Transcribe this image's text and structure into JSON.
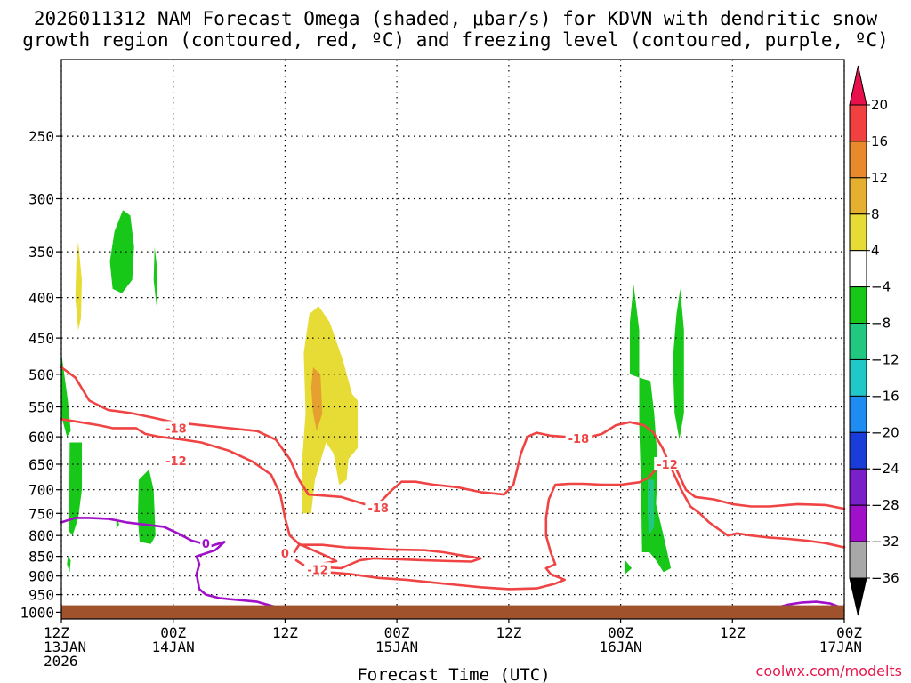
{
  "chart_data": {
    "type": "time-height cross section",
    "title_line1": "2026011312 NAM Forecast Omega (shaded, μbar/s) for KDVN with dendritic snow",
    "title_line2": "growth region (contoured, red, ºC) and freezing level (contoured, purple, ºC)",
    "xlabel": "Forecast Time (UTC)",
    "credit": "coolwx.com/modelts",
    "x_range_hours": [
      0,
      84
    ],
    "x_ticks": [
      {
        "hour": 0,
        "l1": "12Z",
        "l2": "13JAN",
        "l3": "2026"
      },
      {
        "hour": 12,
        "l1": "00Z",
        "l2": "14JAN",
        "l3": ""
      },
      {
        "hour": 24,
        "l1": "12Z",
        "l2": "",
        "l3": ""
      },
      {
        "hour": 36,
        "l1": "00Z",
        "l2": "15JAN",
        "l3": ""
      },
      {
        "hour": 48,
        "l1": "12Z",
        "l2": "",
        "l3": ""
      },
      {
        "hour": 60,
        "l1": "00Z",
        "l2": "16JAN",
        "l3": ""
      },
      {
        "hour": 72,
        "l1": "12Z",
        "l2": "",
        "l3": ""
      },
      {
        "hour": 84,
        "l1": "00Z",
        "l2": "17JAN",
        "l3": ""
      }
    ],
    "y_ticks_hpa": [
      250,
      300,
      350,
      400,
      450,
      500,
      550,
      600,
      650,
      700,
      750,
      800,
      850,
      900,
      950,
      1000
    ],
    "y_range_hpa": [
      200,
      1020
    ],
    "surface_hpa": 980,
    "colorbar": {
      "levels": [
        "20",
        "16",
        "12",
        "8",
        "4",
        "−4",
        "−8",
        "−12",
        "−16",
        "−20",
        "−24",
        "−28",
        "−32",
        "−36"
      ],
      "colors": [
        "#e8104c",
        "#f04040",
        "#e88a2c",
        "#e5b030",
        "#e6dc35",
        "#ffffff",
        "#18c818",
        "#20c880",
        "#20c8c8",
        "#1e8cf0",
        "#1a3cd8",
        "#7a20c8",
        "#a010c8",
        "#a8a8a8",
        "#000000"
      ]
    },
    "colors": {
      "green": "#18c818",
      "teal": "#20c880",
      "yellow": "#e6dc35",
      "orange": "#e5a030",
      "dsgz": "#f04444",
      "freezing": "#a010c8",
      "ground": "#a0522d"
    },
    "shaded_regions": [
      {
        "color": "green",
        "points": [
          [
            5.5,
            390
          ],
          [
            5.2,
            360
          ],
          [
            5.7,
            330
          ],
          [
            6.6,
            310
          ],
          [
            7.4,
            315
          ],
          [
            7.8,
            345
          ],
          [
            7.6,
            380
          ],
          [
            6.5,
            395
          ]
        ]
      },
      {
        "color": "green",
        "points": [
          [
            10.0,
            345
          ],
          [
            10.3,
            370
          ],
          [
            10.2,
            410
          ],
          [
            9.9,
            380
          ]
        ]
      },
      {
        "color": "yellow",
        "points": [
          [
            1.8,
            340
          ],
          [
            2.2,
            380
          ],
          [
            2.1,
            425
          ],
          [
            1.8,
            440
          ],
          [
            1.5,
            400
          ],
          [
            1.6,
            360
          ]
        ]
      },
      {
        "color": "green",
        "points": [
          [
            0.0,
            470
          ],
          [
            0.7,
            540
          ],
          [
            1.0,
            590
          ],
          [
            0.6,
            600
          ],
          [
            0.0,
            565
          ]
        ]
      },
      {
        "color": "green",
        "points": [
          [
            0.9,
            610
          ],
          [
            2.2,
            610
          ],
          [
            2.2,
            700
          ],
          [
            1.8,
            760
          ],
          [
            1.2,
            800
          ],
          [
            0.8,
            790
          ]
        ]
      },
      {
        "color": "green",
        "points": [
          [
            0.7,
            850
          ],
          [
            1.0,
            860
          ],
          [
            0.9,
            890
          ],
          [
            0.6,
            870
          ]
        ]
      },
      {
        "color": "green",
        "points": [
          [
            5.9,
            755
          ],
          [
            6.2,
            775
          ],
          [
            5.9,
            785
          ]
        ]
      },
      {
        "color": "green",
        "points": [
          [
            8.3,
            680
          ],
          [
            9.4,
            660
          ],
          [
            9.9,
            700
          ],
          [
            10.1,
            800
          ],
          [
            9.6,
            820
          ],
          [
            8.4,
            815
          ],
          [
            8.2,
            760
          ]
        ]
      },
      {
        "color": "yellow",
        "points": [
          [
            26.0,
            470
          ],
          [
            26.6,
            420
          ],
          [
            27.6,
            410
          ],
          [
            28.8,
            430
          ],
          [
            30.2,
            480
          ],
          [
            31.2,
            530
          ],
          [
            31.8,
            540
          ],
          [
            31.8,
            620
          ],
          [
            30.8,
            640
          ],
          [
            30.6,
            680
          ],
          [
            29.8,
            690
          ],
          [
            29.2,
            630
          ],
          [
            28.4,
            610
          ],
          [
            27.2,
            680
          ],
          [
            26.8,
            750
          ],
          [
            25.8,
            750
          ],
          [
            25.8,
            650
          ],
          [
            26.2,
            560
          ]
        ]
      },
      {
        "color": "orange",
        "points": [
          [
            27.0,
            490
          ],
          [
            27.8,
            500
          ],
          [
            28.0,
            560
          ],
          [
            27.4,
            590
          ],
          [
            27.0,
            560
          ],
          [
            26.8,
            520
          ]
        ]
      },
      {
        "color": "green",
        "points": [
          [
            61.0,
            500
          ],
          [
            61.0,
            430
          ],
          [
            61.4,
            385
          ],
          [
            62.0,
            440
          ],
          [
            62.0,
            505
          ]
        ]
      },
      {
        "color": "green",
        "points": [
          [
            62.0,
            505
          ],
          [
            63.2,
            510
          ],
          [
            63.6,
            560
          ],
          [
            64.0,
            650
          ],
          [
            63.8,
            730
          ],
          [
            64.6,
            800
          ],
          [
            65.4,
            880
          ],
          [
            64.6,
            890
          ],
          [
            63.8,
            860
          ],
          [
            63.1,
            840
          ],
          [
            62.3,
            840
          ],
          [
            62.2,
            700
          ],
          [
            62.0,
            580
          ]
        ]
      },
      {
        "color": "teal",
        "points": [
          [
            62.9,
            680
          ],
          [
            63.6,
            680
          ],
          [
            63.6,
            780
          ],
          [
            63.0,
            800
          ],
          [
            62.9,
            740
          ]
        ]
      },
      {
        "color": "green",
        "points": [
          [
            66.0,
            420
          ],
          [
            66.4,
            390
          ],
          [
            66.8,
            440
          ],
          [
            66.8,
            560
          ],
          [
            66.3,
            605
          ],
          [
            65.8,
            560
          ],
          [
            65.6,
            480
          ]
        ]
      },
      {
        "color": "green",
        "points": [
          [
            60.5,
            860
          ],
          [
            61.2,
            880
          ],
          [
            60.5,
            895
          ]
        ]
      }
    ],
    "contours": [
      {
        "kind": "dsgz",
        "points": [
          [
            0,
            490
          ],
          [
            1.5,
            505
          ],
          [
            3.0,
            540
          ],
          [
            5.0,
            555
          ],
          [
            7.5,
            560
          ],
          [
            10.0,
            568
          ],
          [
            12.0,
            575
          ],
          [
            15.0,
            580
          ],
          [
            18.0,
            585
          ],
          [
            21.0,
            590
          ],
          [
            23.0,
            605
          ],
          [
            24.5,
            640
          ],
          [
            25.5,
            680
          ],
          [
            26.5,
            710
          ],
          [
            28.0,
            712
          ],
          [
            30.0,
            715
          ],
          [
            32.5,
            730
          ],
          [
            34.0,
            730
          ],
          [
            35.5,
            700
          ],
          [
            36.5,
            684
          ],
          [
            38.0,
            684
          ],
          [
            40.0,
            690
          ],
          [
            42.5,
            695
          ],
          [
            45.0,
            705
          ],
          [
            47.5,
            710
          ],
          [
            48.5,
            690
          ],
          [
            49.3,
            630
          ],
          [
            50.0,
            600
          ],
          [
            51.0,
            593
          ],
          [
            52.5,
            598
          ],
          [
            54.0,
            600
          ],
          [
            56.0,
            603
          ],
          [
            58.0,
            595
          ],
          [
            59.5,
            580
          ],
          [
            61.0,
            575
          ],
          [
            62.5,
            580
          ],
          [
            63.5,
            592
          ],
          [
            64.5,
            620
          ],
          [
            65.5,
            660
          ],
          [
            66.5,
            700
          ],
          [
            67.5,
            735
          ],
          [
            68.5,
            750
          ],
          [
            69.5,
            770
          ],
          [
            70.5,
            785
          ],
          [
            71.5,
            800
          ],
          [
            72.5,
            795
          ],
          [
            74.0,
            800
          ],
          [
            76.0,
            805
          ],
          [
            78.0,
            808
          ],
          [
            80.0,
            812
          ],
          [
            82.0,
            818
          ],
          [
            84.0,
            828
          ]
        ]
      },
      {
        "kind": "dsgz",
        "points": [
          [
            0,
            570
          ],
          [
            2.0,
            575
          ],
          [
            4.0,
            580
          ],
          [
            5.5,
            585
          ],
          [
            8.0,
            585
          ],
          [
            9.0,
            595
          ],
          [
            10.5,
            600
          ],
          [
            13.0,
            605
          ],
          [
            15.0,
            610
          ],
          [
            18.0,
            625
          ],
          [
            20.5,
            645
          ],
          [
            22.5,
            670
          ],
          [
            23.5,
            710
          ],
          [
            24.0,
            760
          ],
          [
            24.5,
            800
          ],
          [
            25.5,
            820
          ],
          [
            27.0,
            835
          ],
          [
            28.5,
            850
          ],
          [
            29.5,
            862
          ],
          [
            27.5,
            870
          ],
          [
            26.5,
            875
          ],
          [
            27.0,
            885
          ],
          [
            28.5,
            890
          ],
          [
            31.0,
            895
          ],
          [
            34.0,
            905
          ],
          [
            37.0,
            910
          ],
          [
            41.0,
            920
          ],
          [
            45.0,
            930
          ],
          [
            48.0,
            935
          ],
          [
            51.0,
            933
          ],
          [
            53.0,
            920
          ],
          [
            54.0,
            910
          ],
          [
            52.5,
            895
          ],
          [
            52.0,
            880
          ],
          [
            53.0,
            870
          ],
          [
            52.5,
            840
          ],
          [
            52.0,
            800
          ],
          [
            52.0,
            760
          ],
          [
            52.3,
            720
          ],
          [
            53.0,
            690
          ],
          [
            54.5,
            688
          ],
          [
            56.0,
            688
          ],
          [
            58.0,
            690
          ],
          [
            60.0,
            690
          ],
          [
            62.0,
            685
          ],
          [
            63.0,
            676
          ],
          [
            64.0,
            655
          ],
          [
            65.0,
            648
          ],
          [
            66.0,
            660
          ],
          [
            67.0,
            700
          ],
          [
            68.0,
            715
          ],
          [
            70.0,
            720
          ],
          [
            72.0,
            730
          ],
          [
            74.0,
            735
          ],
          [
            76.0,
            735
          ],
          [
            79.0,
            730
          ],
          [
            82.0,
            732
          ],
          [
            84.0,
            740
          ]
        ]
      },
      {
        "kind": "dsgz",
        "points": [
          [
            25.2,
            860
          ],
          [
            26.0,
            872
          ],
          [
            27.5,
            878
          ],
          [
            28.5,
            878
          ],
          [
            30.0,
            880
          ],
          [
            31.0,
            870
          ],
          [
            32.0,
            860
          ],
          [
            33.5,
            855
          ],
          [
            36.0,
            857
          ],
          [
            39.0,
            860
          ],
          [
            42.0,
            862
          ],
          [
            44.0,
            863
          ],
          [
            45.0,
            855
          ],
          [
            43.0,
            848
          ],
          [
            41.0,
            840
          ],
          [
            39.0,
            835
          ],
          [
            35.0,
            833
          ],
          [
            33.0,
            830
          ],
          [
            30.5,
            828
          ],
          [
            28.0,
            822
          ],
          [
            25.5,
            822
          ],
          [
            25.0,
            840
          ]
        ]
      },
      {
        "kind": "freezing",
        "points": [
          [
            0,
            770
          ],
          [
            1.5,
            760
          ],
          [
            3.0,
            760
          ],
          [
            5.0,
            762
          ],
          [
            7.0,
            770
          ],
          [
            9.0,
            775
          ],
          [
            11.0,
            780
          ],
          [
            12.5,
            795
          ],
          [
            14.0,
            812
          ],
          [
            15.0,
            818
          ],
          [
            16.0,
            825
          ],
          [
            17.5,
            815
          ],
          [
            16.5,
            835
          ],
          [
            14.5,
            850
          ],
          [
            14.8,
            870
          ],
          [
            14.5,
            895
          ],
          [
            14.8,
            935
          ],
          [
            15.5,
            950
          ],
          [
            17.0,
            960
          ],
          [
            19.0,
            965
          ],
          [
            21.0,
            970
          ],
          [
            23.0,
            985
          ]
        ]
      },
      {
        "kind": "freezing",
        "points": [
          [
            77.0,
            985
          ],
          [
            78.0,
            978
          ],
          [
            79.5,
            972
          ],
          [
            81.0,
            970
          ],
          [
            82.5,
            975
          ],
          [
            83.5,
            985
          ]
        ]
      }
    ],
    "contour_labels": [
      {
        "text": "-18",
        "hour": 12.3,
        "hpa": 585,
        "kind": "dsgz"
      },
      {
        "text": "-12",
        "hour": 12.3,
        "hpa": 643,
        "kind": "dsgz"
      },
      {
        "text": "-18",
        "hour": 34.0,
        "hpa": 738,
        "kind": "dsgz"
      },
      {
        "text": "-12",
        "hour": 27.5,
        "hpa": 883,
        "kind": "dsgz"
      },
      {
        "text": "-18",
        "hour": 55.5,
        "hpa": 603,
        "kind": "dsgz"
      },
      {
        "text": "-12",
        "hour": 65.0,
        "hpa": 650,
        "kind": "dsgz"
      },
      {
        "text": "0",
        "hour": 15.5,
        "hpa": 818,
        "kind": "freezing"
      },
      {
        "text": "0",
        "hour": 24.0,
        "hpa": 842,
        "kind": "dsgz"
      }
    ]
  }
}
